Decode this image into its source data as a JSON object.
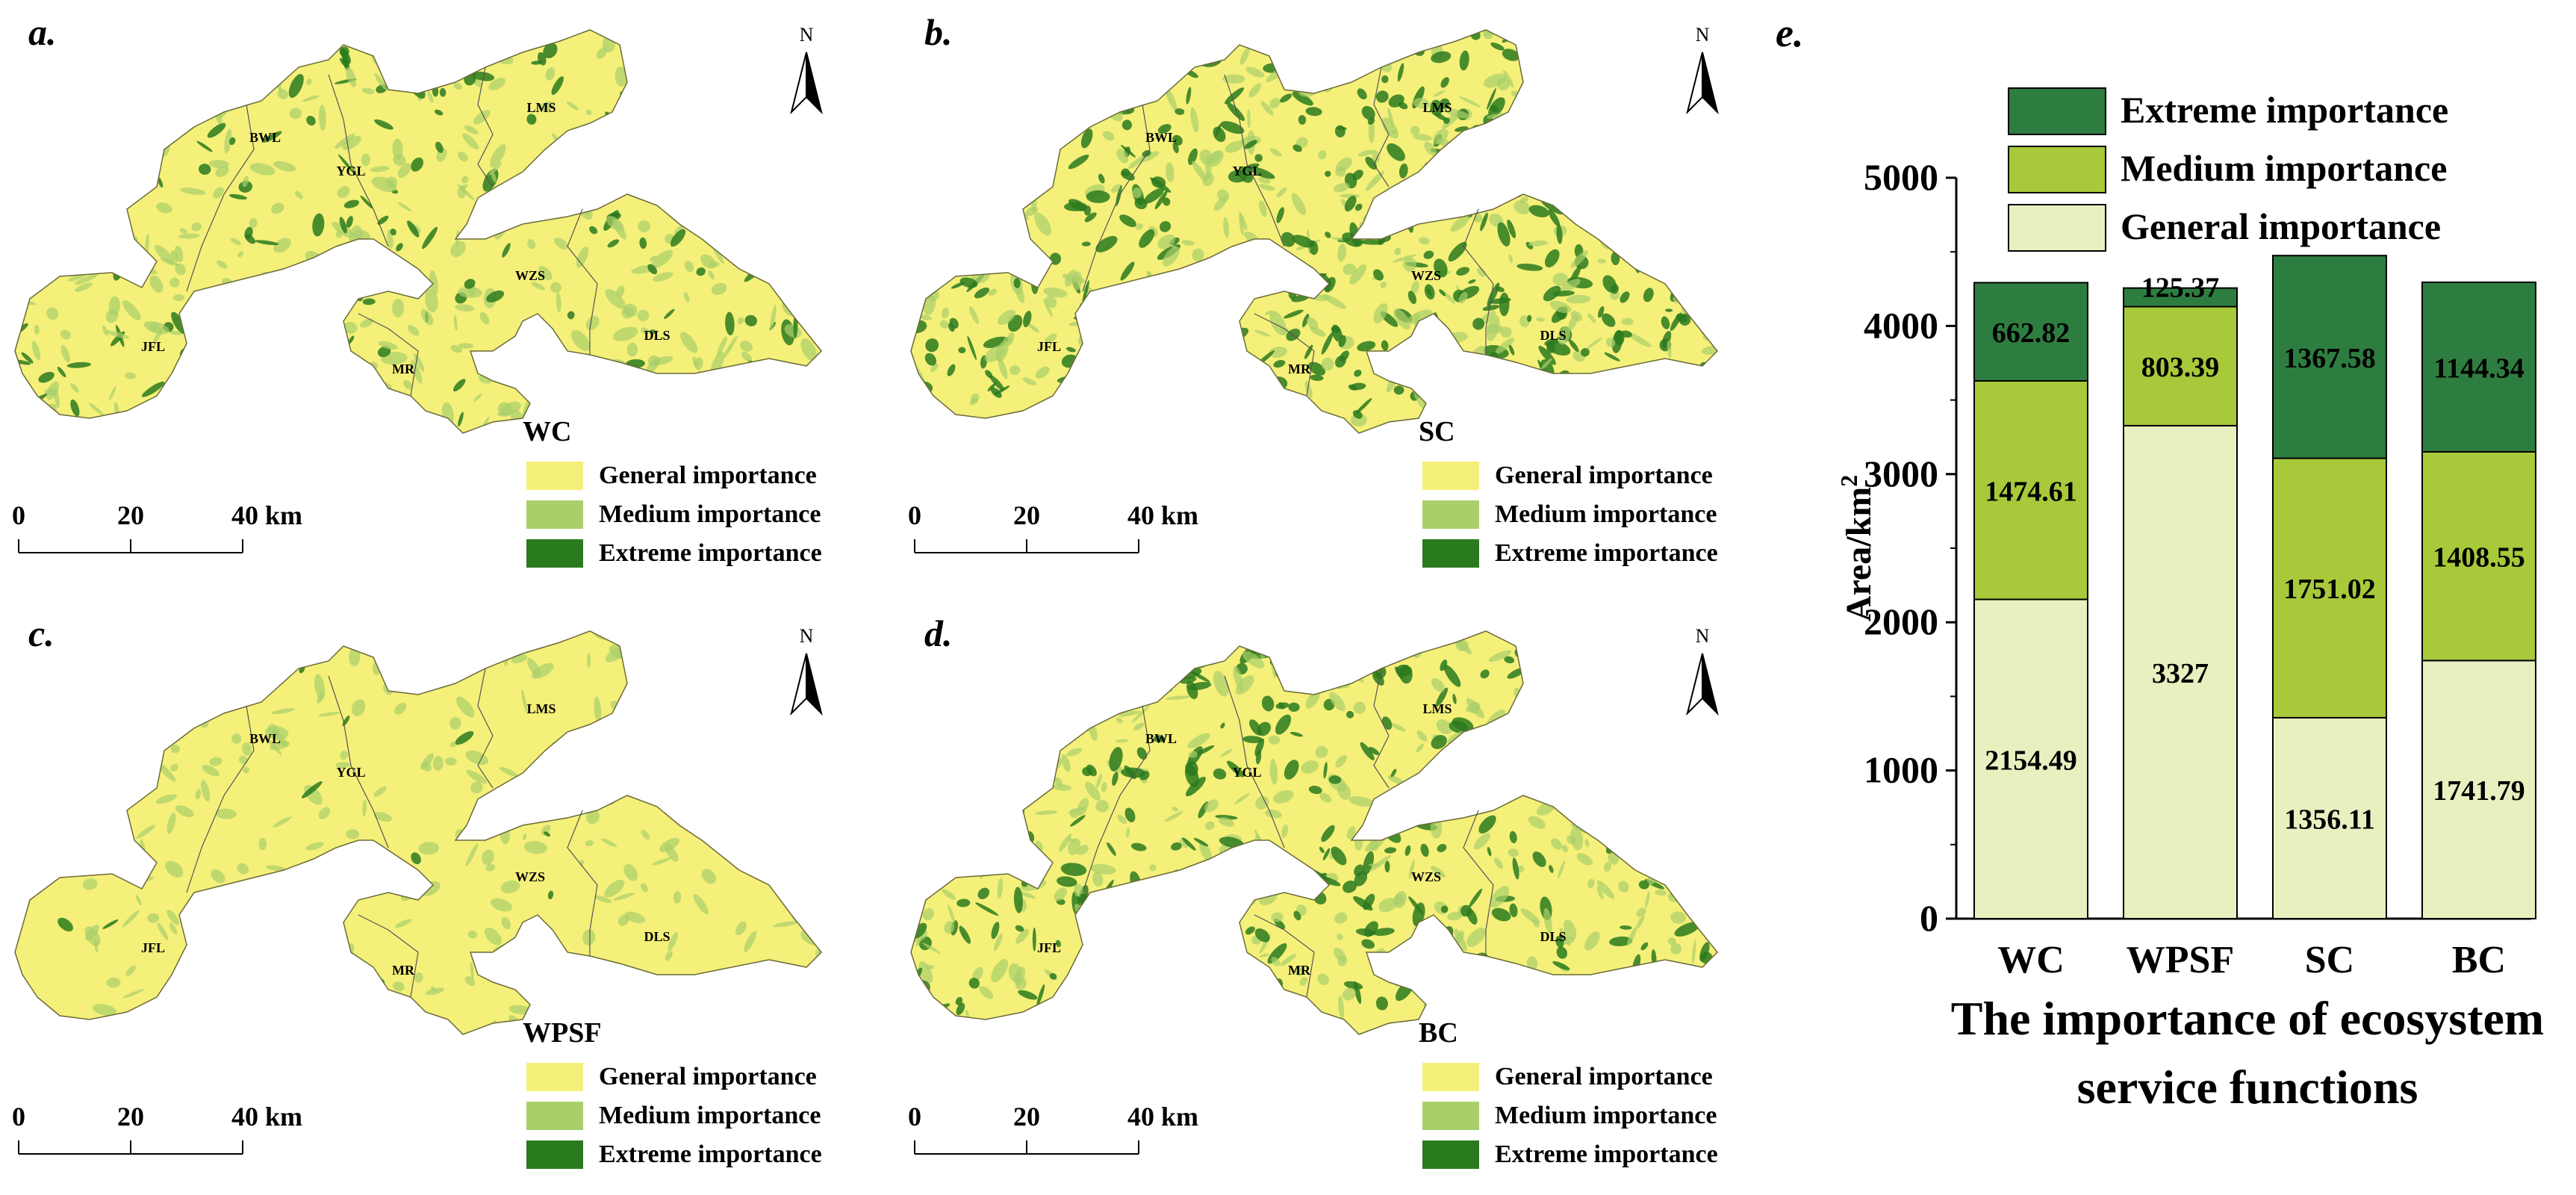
{
  "colors": {
    "general": "#f5f07a",
    "medium": "#a9cf6b",
    "extreme": "#2a7a1e",
    "bar_general": "#e8f0c0",
    "bar_medium": "#a7c93a",
    "bar_extreme": "#2e7d40"
  },
  "common": {
    "north": "N",
    "scale_ticks": [
      "0",
      "20",
      "40 km"
    ],
    "legend_labels": [
      "General importance",
      "Medium importance",
      "Extreme importance"
    ],
    "regions": [
      "BWL",
      "YGL",
      "LMS",
      "WZS",
      "DLS",
      "JFL",
      "MR"
    ]
  },
  "maps": [
    {
      "key": "a",
      "label": "a.",
      "service": "WC",
      "greenness": 0.45
    },
    {
      "key": "b",
      "label": "b.",
      "service": "SC",
      "greenness": 0.75
    },
    {
      "key": "c",
      "label": "c.",
      "service": "WPSF",
      "greenness": 0.12
    },
    {
      "key": "d",
      "label": "d.",
      "service": "BC",
      "greenness": 0.6
    }
  ],
  "chart_panel_label": "e.",
  "chart_data": {
    "type": "bar",
    "stacked": true,
    "categories": [
      "WC",
      "WPSF",
      "SC",
      "BC"
    ],
    "series": [
      {
        "name": "General importance",
        "values": [
          2154.49,
          3327,
          1356.11,
          1741.79
        ],
        "labels": [
          "2154.49",
          "3327",
          "1356.11",
          "1741.79"
        ]
      },
      {
        "name": "Medium importance",
        "values": [
          1474.61,
          803.39,
          1751.02,
          1408.55
        ],
        "labels": [
          "1474.61",
          "803.39",
          "1751.02",
          "1408.55"
        ]
      },
      {
        "name": "Extreme importance",
        "values": [
          662.82,
          125.37,
          1367.58,
          1144.34
        ],
        "labels": [
          "662.82",
          "125.37",
          "1367.58",
          "1144.34"
        ]
      }
    ],
    "ylabel": "Area/km",
    "ylabel_sup": "2",
    "xlabel_lines": [
      "The importance of  ecosystem",
      "service functions"
    ],
    "ylim": [
      0,
      5000
    ],
    "yticks": [
      "0",
      "1000",
      "2000",
      "3000",
      "4000",
      "5000"
    ],
    "legend_position": "top"
  }
}
